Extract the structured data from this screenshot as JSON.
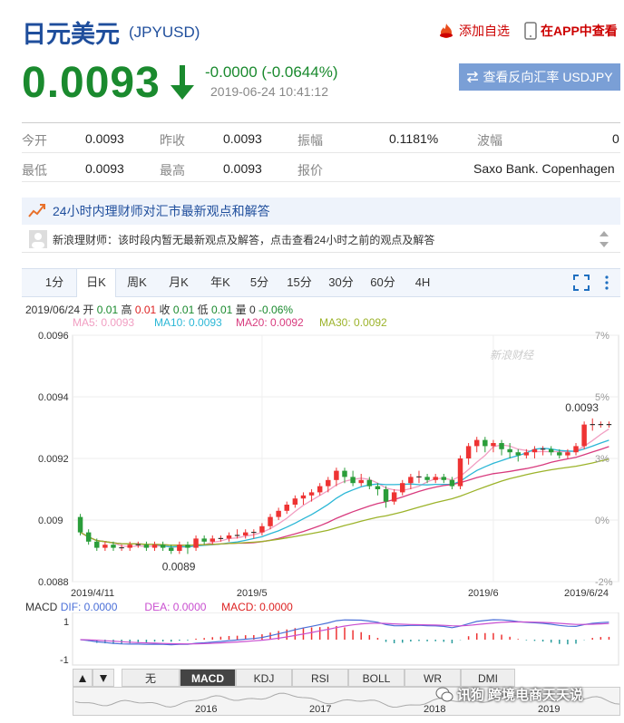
{
  "header": {
    "title": "日元美元",
    "code": "(JPYUSD)",
    "add_fav": "添加自选",
    "view_app": "在APP中查看"
  },
  "quote": {
    "price": "0.0093",
    "change": "-0.0000 (-0.0644%)",
    "time": "2019-06-24 10:41:12",
    "reverse_btn": "查看反向汇率 USDJPY"
  },
  "stats": {
    "row1": [
      {
        "label": "今开",
        "value": "0.0093"
      },
      {
        "label": "昨收",
        "value": "0.0093"
      },
      {
        "label": "振幅",
        "value": "0.1181%"
      },
      {
        "label": "波幅",
        "value": "0"
      }
    ],
    "row2": [
      {
        "label": "最低",
        "value": "0.0093"
      },
      {
        "label": "最高",
        "value": "0.0093"
      },
      {
        "label": "报价",
        "value": "Saxo Bank. Copenhagen"
      }
    ]
  },
  "news": {
    "headline": "24小时内理财师对汇市最新观点和解答",
    "message": "新浪理财师：该时段内暂无最新观点及解答，点击查看24小时之前的观点及解答"
  },
  "chart_tabs": [
    "1分",
    "日K",
    "周K",
    "月K",
    "年K",
    "5分",
    "15分",
    "30分",
    "60分",
    "4H"
  ],
  "active_tab": "日K",
  "ohlc": {
    "date": "2019/06/24",
    "open_label": "开",
    "open": "0.01",
    "high_label": "高",
    "high": "0.01",
    "close_label": "收",
    "close": "0.01",
    "low_label": "低",
    "low": "0.01",
    "vol_label": "量",
    "vol": "0",
    "pct": "-0.06%"
  },
  "ma": [
    {
      "label": "MA5: 0.0093",
      "color": "#f19ec2"
    },
    {
      "label": "MA10: 0.0093",
      "color": "#2bb7d6"
    },
    {
      "label": "MA20: 0.0092",
      "color": "#d83b7e"
    },
    {
      "label": "MA30: 0.0092",
      "color": "#9cb32a"
    }
  ],
  "chart_data": {
    "type": "candlestick",
    "y_ticks": [
      "0.0096",
      "0.0094",
      "0.0092",
      "0.009",
      "0.0088"
    ],
    "y_right_ticks": [
      "7%",
      "5%",
      "3%",
      "0%",
      "-2%"
    ],
    "x_ticks": [
      "2019/4/11",
      "2019/5",
      "2019/6",
      "2019/6/24"
    ],
    "ylim": [
      0.0088,
      0.0096
    ],
    "annotations": {
      "high": "0.0093",
      "low": "0.0089"
    },
    "watermark": "新浪财经",
    "candles": [
      [
        0.00901,
        0.00896,
        0.00902,
        0.00895
      ],
      [
        0.00896,
        0.00893,
        0.00897,
        0.00892
      ],
      [
        0.00893,
        0.00891,
        0.00894,
        0.0089
      ],
      [
        0.00891,
        0.00892,
        0.00893,
        0.0089
      ],
      [
        0.00892,
        0.00891,
        0.00893,
        0.0089
      ],
      [
        0.00891,
        0.00891,
        0.00892,
        0.0089
      ],
      [
        0.00891,
        0.00892,
        0.00893,
        0.0089
      ],
      [
        0.00892,
        0.00892,
        0.00893,
        0.00891
      ],
      [
        0.00892,
        0.00891,
        0.00893,
        0.0089
      ],
      [
        0.00891,
        0.00892,
        0.00893,
        0.0089
      ],
      [
        0.00892,
        0.00891,
        0.00893,
        0.0089
      ],
      [
        0.00891,
        0.0089,
        0.00892,
        0.00889
      ],
      [
        0.0089,
        0.00892,
        0.00893,
        0.00889
      ],
      [
        0.00892,
        0.00891,
        0.00893,
        0.00889
      ],
      [
        0.00891,
        0.00894,
        0.00895,
        0.0089
      ],
      [
        0.00894,
        0.00893,
        0.00895,
        0.00892
      ],
      [
        0.00893,
        0.00894,
        0.00895,
        0.00892
      ],
      [
        0.00894,
        0.00894,
        0.00895,
        0.00893
      ],
      [
        0.00894,
        0.00895,
        0.00896,
        0.00893
      ],
      [
        0.00895,
        0.00895,
        0.00897,
        0.00894
      ],
      [
        0.00895,
        0.00896,
        0.00897,
        0.00894
      ],
      [
        0.00896,
        0.00896,
        0.00897,
        0.00894
      ],
      [
        0.00896,
        0.00898,
        0.00899,
        0.00895
      ],
      [
        0.00898,
        0.00901,
        0.00902,
        0.00897
      ],
      [
        0.00901,
        0.00903,
        0.00904,
        0.009
      ],
      [
        0.00903,
        0.00905,
        0.00906,
        0.00902
      ],
      [
        0.00905,
        0.00907,
        0.00908,
        0.00904
      ],
      [
        0.00907,
        0.00908,
        0.00909,
        0.00905
      ],
      [
        0.00908,
        0.00909,
        0.0091,
        0.00906
      ],
      [
        0.00909,
        0.00911,
        0.00912,
        0.00908
      ],
      [
        0.00911,
        0.00913,
        0.00914,
        0.00909
      ],
      [
        0.00913,
        0.00916,
        0.00917,
        0.00911
      ],
      [
        0.00916,
        0.00914,
        0.00917,
        0.00912
      ],
      [
        0.00914,
        0.00912,
        0.00916,
        0.00911
      ],
      [
        0.00912,
        0.00913,
        0.00915,
        0.00911
      ],
      [
        0.00913,
        0.00911,
        0.00914,
        0.0091
      ],
      [
        0.00911,
        0.0091,
        0.00912,
        0.00908
      ],
      [
        0.0091,
        0.00906,
        0.00911,
        0.00904
      ],
      [
        0.00906,
        0.00909,
        0.0091,
        0.00905
      ],
      [
        0.00909,
        0.00912,
        0.00913,
        0.00908
      ],
      [
        0.00912,
        0.00914,
        0.00915,
        0.0091
      ],
      [
        0.00914,
        0.00914,
        0.00916,
        0.00912
      ],
      [
        0.00914,
        0.00913,
        0.00915,
        0.00912
      ],
      [
        0.00913,
        0.00914,
        0.00915,
        0.00912
      ],
      [
        0.00914,
        0.00913,
        0.00915,
        0.00912
      ],
      [
        0.00913,
        0.00911,
        0.00914,
        0.0091
      ],
      [
        0.00911,
        0.0092,
        0.00921,
        0.0091
      ],
      [
        0.0092,
        0.00924,
        0.00925,
        0.00918
      ],
      [
        0.00924,
        0.00926,
        0.00927,
        0.00922
      ],
      [
        0.00926,
        0.00924,
        0.00927,
        0.00922
      ],
      [
        0.00924,
        0.00925,
        0.00926,
        0.00922
      ],
      [
        0.00925,
        0.00923,
        0.00926,
        0.00921
      ],
      [
        0.00923,
        0.00922,
        0.00925,
        0.0092
      ],
      [
        0.00922,
        0.00921,
        0.00923,
        0.00919
      ],
      [
        0.00921,
        0.00922,
        0.00923,
        0.0092
      ],
      [
        0.00922,
        0.00923,
        0.00924,
        0.0092
      ],
      [
        0.00923,
        0.00923,
        0.00924,
        0.00921
      ],
      [
        0.00923,
        0.00922,
        0.00924,
        0.00921
      ],
      [
        0.00922,
        0.00921,
        0.00923,
        0.0092
      ],
      [
        0.00921,
        0.00922,
        0.00923,
        0.0092
      ],
      [
        0.00922,
        0.00924,
        0.00925,
        0.00921
      ],
      [
        0.00924,
        0.00931,
        0.00932,
        0.00923
      ],
      [
        0.00931,
        0.00931,
        0.00933,
        0.00929
      ],
      [
        0.00931,
        0.00931,
        0.00932,
        0.0093
      ],
      [
        0.00931,
        0.00931,
        0.00932,
        0.0093
      ]
    ]
  },
  "macd": {
    "label": "MACD",
    "dif": "DIF: 0.0000",
    "dea": "DEA: 0.0000",
    "macd": "MACD: 0.0000",
    "y_ticks": [
      "1",
      "-1"
    ]
  },
  "indicator_tabs": [
    "无",
    "MACD",
    "KDJ",
    "RSI",
    "BOLL",
    "WR",
    "DMI"
  ],
  "active_indicator": "MACD",
  "navigator": {
    "years": [
      "2016",
      "2017",
      "2018",
      "2019"
    ]
  },
  "watermark": "跨境电商天天说",
  "watermark_prefix": "讯狗"
}
